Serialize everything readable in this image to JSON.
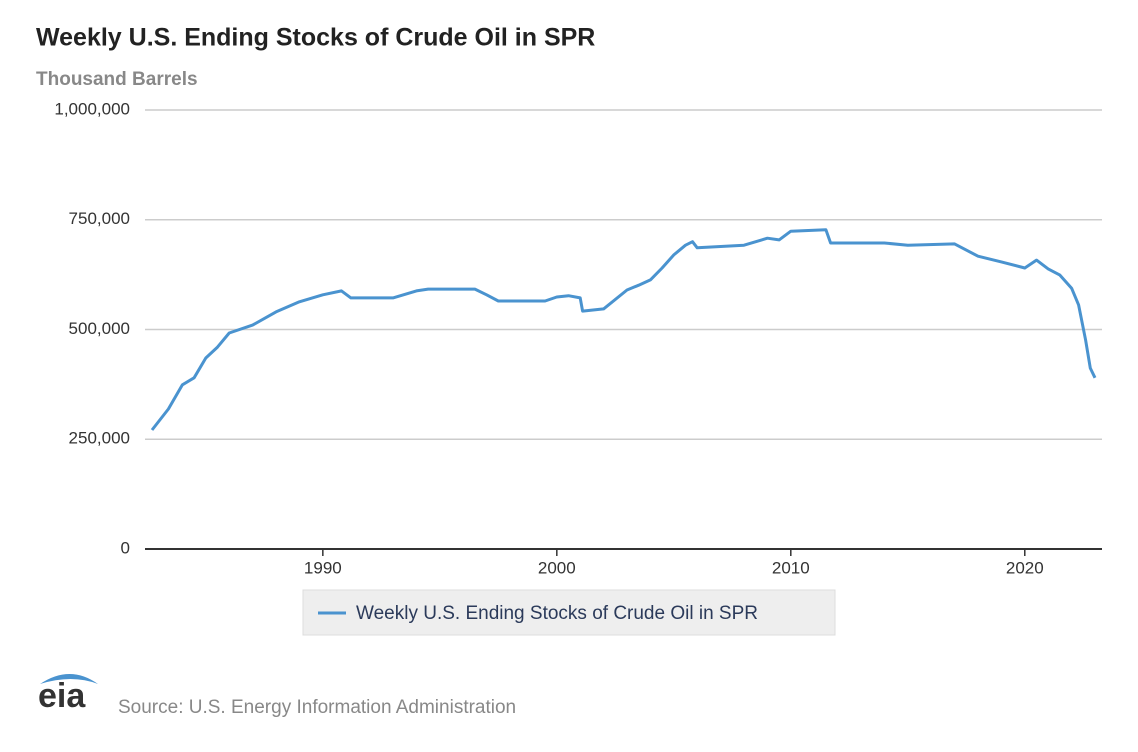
{
  "chart_data": {
    "type": "line",
    "title": "Weekly U.S. Ending Stocks of Crude Oil in SPR",
    "subtitle": "Thousand Barrels",
    "x": [
      1982.7,
      1983.4,
      1984,
      1984.5,
      1985,
      1985.5,
      1986,
      1987,
      1988,
      1989,
      1990,
      1990.8,
      1991.2,
      1993,
      1994,
      1994.5,
      1996.5,
      1997,
      1997.5,
      1999.5,
      2000,
      2000.5,
      2001,
      2001.1,
      2002,
      2003,
      2003.5,
      2004,
      2004.5,
      2005,
      2005.5,
      2005.8,
      2006,
      2008,
      2009,
      2009.5,
      2010,
      2011.5,
      2011.7,
      2014,
      2015,
      2017,
      2018,
      2019,
      2020,
      2020.5,
      2021,
      2021.5,
      2022,
      2022.3,
      2022.6,
      2022.8,
      2023
    ],
    "series": [
      {
        "name": "Weekly U.S. Ending Stocks of Crude Oil in SPR",
        "color": "#4a93cf",
        "values": [
          271000,
          319000,
          374000,
          390000,
          435000,
          460000,
          492000,
          510000,
          540000,
          563000,
          579000,
          588000,
          572000,
          572000,
          588000,
          592000,
          592000,
          579000,
          565000,
          565000,
          574000,
          577000,
          572000,
          542000,
          547000,
          590000,
          601000,
          613000,
          640000,
          670000,
          692000,
          700000,
          686000,
          692000,
          708000,
          704000,
          724000,
          727000,
          697000,
          697000,
          692000,
          695000,
          667000,
          654000,
          640000,
          658000,
          638000,
          624000,
          594000,
          556000,
          476000,
          412000,
          390000
        ]
      }
    ],
    "xlim": [
      1982.4,
      2023.3
    ],
    "xticks": [
      1990,
      2000,
      2010,
      2020
    ],
    "ylim": [
      0,
      1000000
    ],
    "yticks": [
      0,
      {
        "value": 250000,
        "label": "250,000"
      },
      {
        "value": 500000,
        "label": "500,000"
      },
      {
        "value": 750000,
        "label": "750,000"
      },
      {
        "value": 1000000,
        "label": "1,000,000"
      }
    ],
    "grid": true,
    "legend": "bottom",
    "source": "Source: U.S. Energy Information Administration",
    "logo": "eia"
  }
}
